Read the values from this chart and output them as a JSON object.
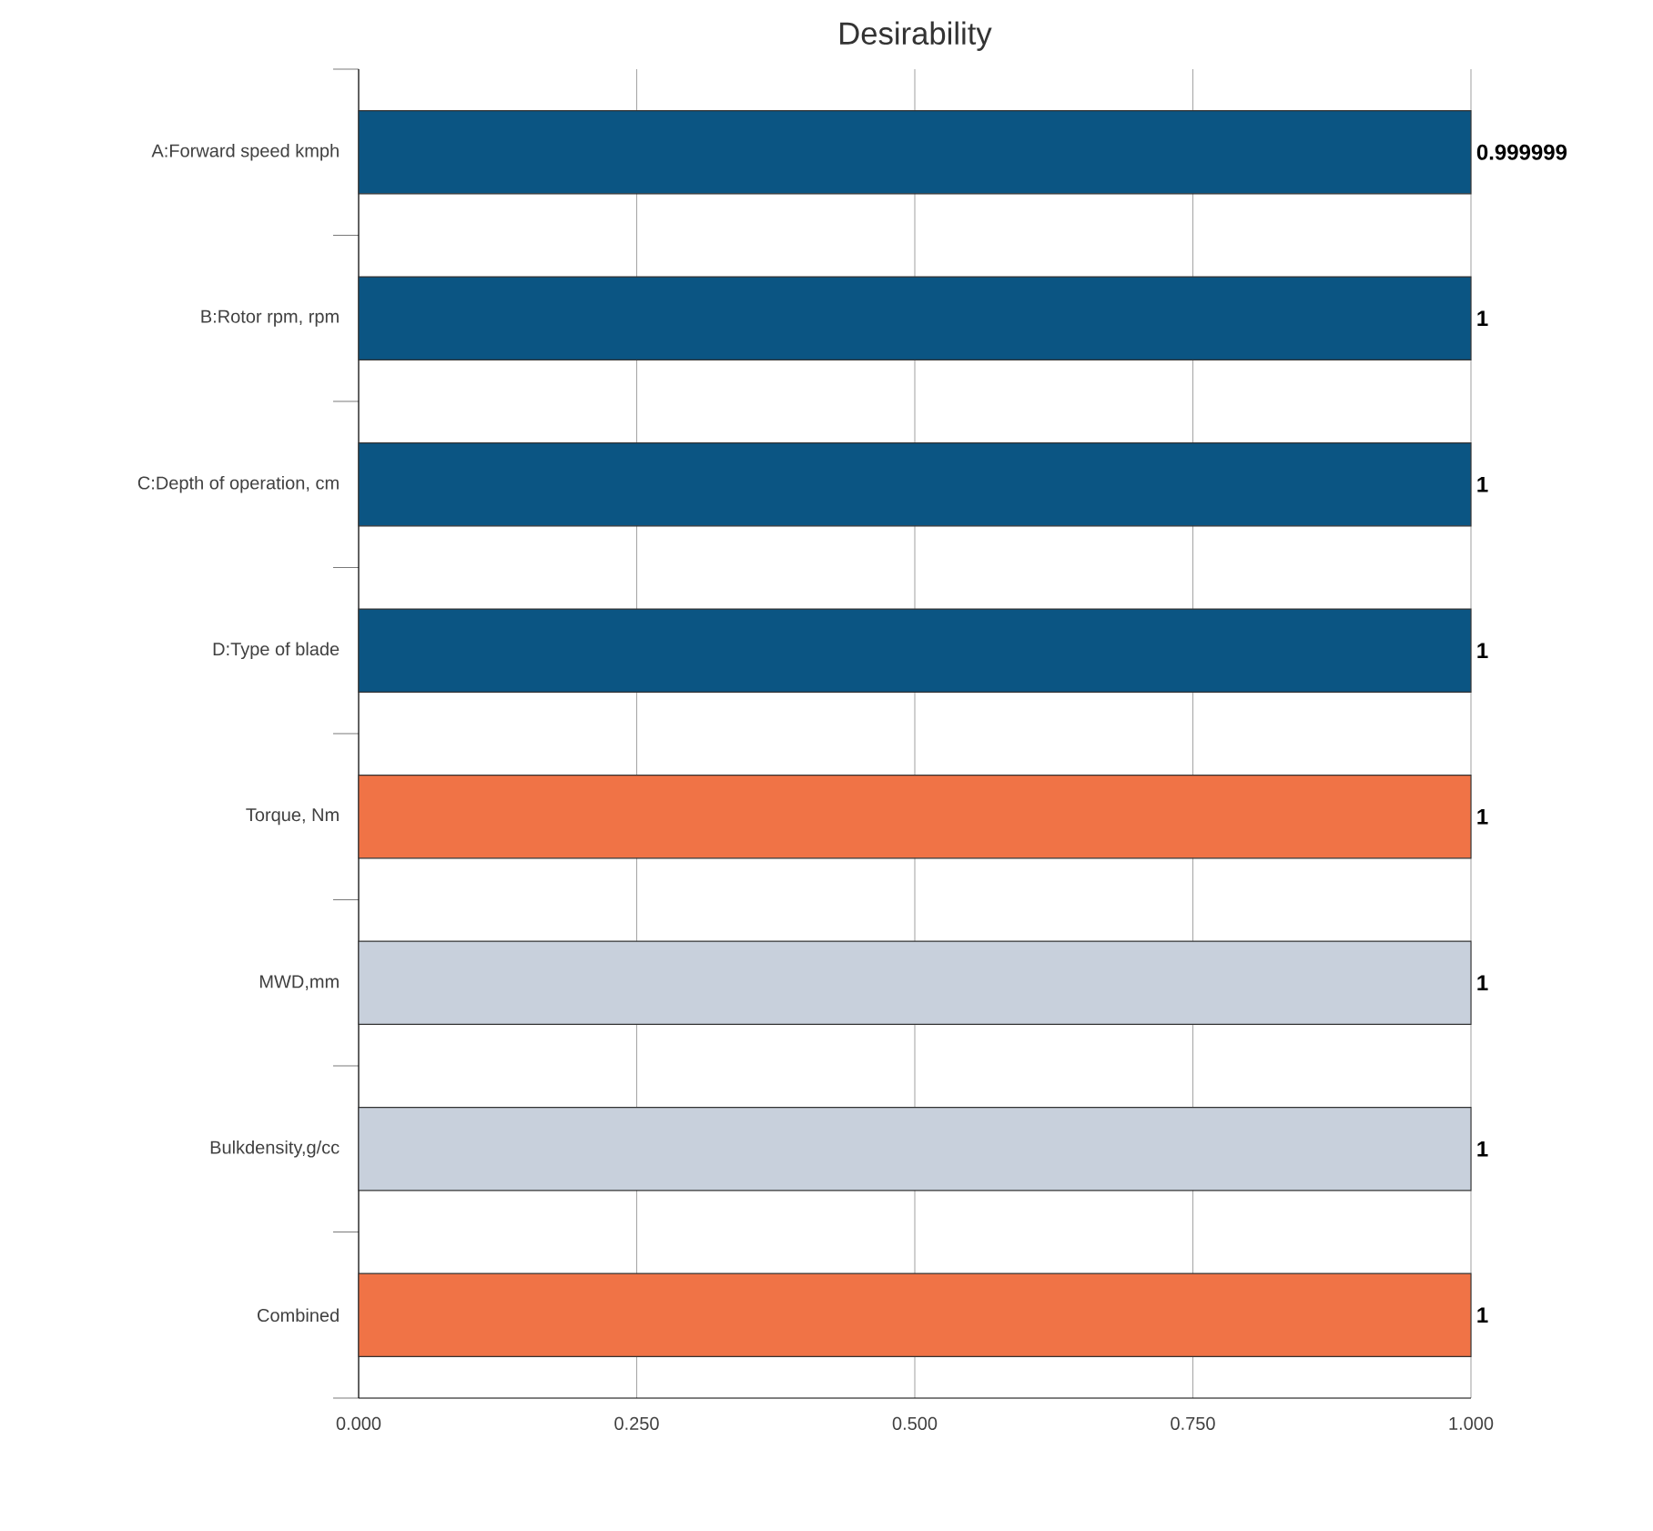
{
  "chart_data": {
    "type": "bar",
    "orientation": "horizontal",
    "title": "Desirability",
    "categories": [
      "A:Forward speed kmph",
      "B:Rotor rpm, rpm",
      "C:Depth of operation, cm",
      "D:Type of blade",
      "Torque, Nm",
      "MWD,mm",
      "Bulkdensity,g/cc",
      "Combined"
    ],
    "values": [
      0.999999,
      1,
      1,
      1,
      1,
      1,
      1,
      1
    ],
    "colors": [
      "#0b5583",
      "#0b5583",
      "#0b5583",
      "#0b5583",
      "#f07346",
      "#c8d0dc",
      "#c8d0dc",
      "#f07346"
    ],
    "xlim": [
      0,
      1
    ],
    "xticks": [
      {
        "value": 0,
        "label": "0.000"
      },
      {
        "value": 0.25,
        "label": "0.250"
      },
      {
        "value": 0.5,
        "label": "0.500"
      },
      {
        "value": 0.75,
        "label": "0.750"
      },
      {
        "value": 1,
        "label": "1.000"
      }
    ],
    "grid": "x",
    "data_labels": true
  }
}
